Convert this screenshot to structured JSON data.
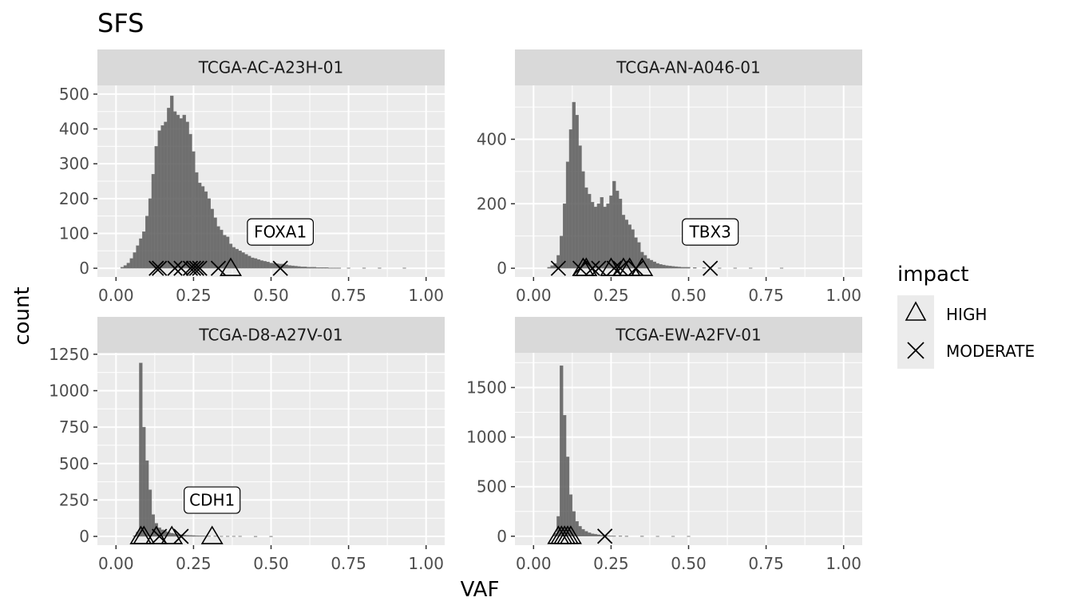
{
  "chart_data": {
    "type": "bar",
    "title": "SFS",
    "xlabel": "VAF",
    "ylabel": "count",
    "xlim": [
      0,
      1
    ],
    "x_ticks": [
      0,
      0.25,
      0.5,
      0.75,
      1
    ],
    "x_tick_labels": [
      "0.00",
      "0.25",
      "0.50",
      "0.75",
      "1.00"
    ],
    "grid": true,
    "legend": {
      "title": "impact",
      "position": "right",
      "entries": [
        {
          "label": "HIGH",
          "shape": "triangle"
        },
        {
          "label": "MODERATE",
          "shape": "cross"
        }
      ]
    },
    "panels": [
      {
        "sample": "TCGA-AC-A23H-01",
        "ylim": [
          -25,
          525
        ],
        "y_ticks": [
          0,
          100,
          200,
          300,
          400,
          500
        ],
        "bins": [
          [
            0.02,
            3
          ],
          [
            0.03,
            8
          ],
          [
            0.04,
            15
          ],
          [
            0.05,
            28
          ],
          [
            0.06,
            45
          ],
          [
            0.07,
            65
          ],
          [
            0.08,
            85
          ],
          [
            0.09,
            105
          ],
          [
            0.1,
            150
          ],
          [
            0.11,
            200
          ],
          [
            0.12,
            270
          ],
          [
            0.13,
            350
          ],
          [
            0.14,
            395
          ],
          [
            0.15,
            410
          ],
          [
            0.16,
            420
          ],
          [
            0.17,
            460
          ],
          [
            0.18,
            495
          ],
          [
            0.19,
            450
          ],
          [
            0.2,
            440
          ],
          [
            0.21,
            430
          ],
          [
            0.22,
            440
          ],
          [
            0.23,
            420
          ],
          [
            0.24,
            385
          ],
          [
            0.25,
            335
          ],
          [
            0.26,
            275
          ],
          [
            0.27,
            245
          ],
          [
            0.28,
            235
          ],
          [
            0.29,
            220
          ],
          [
            0.3,
            200
          ],
          [
            0.31,
            170
          ],
          [
            0.32,
            145
          ],
          [
            0.33,
            120
          ],
          [
            0.34,
            110
          ],
          [
            0.35,
            95
          ],
          [
            0.36,
            90
          ],
          [
            0.37,
            70
          ],
          [
            0.38,
            60
          ],
          [
            0.39,
            55
          ],
          [
            0.4,
            50
          ],
          [
            0.41,
            45
          ],
          [
            0.42,
            40
          ],
          [
            0.43,
            35
          ],
          [
            0.44,
            30
          ],
          [
            0.45,
            28
          ],
          [
            0.46,
            25
          ],
          [
            0.47,
            22
          ],
          [
            0.48,
            20
          ],
          [
            0.49,
            18
          ],
          [
            0.5,
            15
          ],
          [
            0.51,
            14
          ],
          [
            0.52,
            13
          ],
          [
            0.53,
            12
          ],
          [
            0.54,
            12
          ],
          [
            0.55,
            10
          ],
          [
            0.56,
            8
          ],
          [
            0.57,
            7
          ],
          [
            0.58,
            6
          ],
          [
            0.59,
            5
          ],
          [
            0.6,
            4
          ],
          [
            0.61,
            4
          ],
          [
            0.62,
            3
          ],
          [
            0.63,
            3
          ],
          [
            0.64,
            3
          ],
          [
            0.65,
            2
          ],
          [
            0.66,
            2
          ],
          [
            0.67,
            2
          ],
          [
            0.68,
            2
          ],
          [
            0.69,
            1
          ],
          [
            0.7,
            1
          ],
          [
            0.71,
            1
          ],
          [
            0.72,
            1
          ],
          [
            0.75,
            1
          ],
          [
            0.8,
            1
          ],
          [
            0.85,
            1
          ],
          [
            0.93,
            1
          ]
        ],
        "mutations": [
          {
            "vaf": 0.13,
            "impact": "MODERATE"
          },
          {
            "vaf": 0.14,
            "impact": "MODERATE"
          },
          {
            "vaf": 0.19,
            "impact": "MODERATE"
          },
          {
            "vaf": 0.21,
            "impact": "MODERATE"
          },
          {
            "vaf": 0.24,
            "impact": "MODERATE"
          },
          {
            "vaf": 0.25,
            "impact": "MODERATE"
          },
          {
            "vaf": 0.26,
            "impact": "MODERATE"
          },
          {
            "vaf": 0.27,
            "impact": "MODERATE"
          },
          {
            "vaf": 0.33,
            "impact": "MODERATE"
          },
          {
            "vaf": 0.37,
            "impact": "HIGH"
          },
          {
            "vaf": 0.53,
            "impact": "MODERATE",
            "label": "FOXA1"
          }
        ]
      },
      {
        "sample": "TCGA-AN-A046-01",
        "ylim": [
          -27,
          567
        ],
        "y_ticks": [
          0,
          200,
          400
        ],
        "bins": [
          [
            0.05,
            3
          ],
          [
            0.06,
            8
          ],
          [
            0.07,
            15
          ],
          [
            0.08,
            40
          ],
          [
            0.09,
            100
          ],
          [
            0.1,
            200
          ],
          [
            0.11,
            330
          ],
          [
            0.12,
            430
          ],
          [
            0.13,
            515
          ],
          [
            0.14,
            475
          ],
          [
            0.15,
            380
          ],
          [
            0.16,
            300
          ],
          [
            0.17,
            250
          ],
          [
            0.18,
            230
          ],
          [
            0.19,
            205
          ],
          [
            0.2,
            190
          ],
          [
            0.21,
            200
          ],
          [
            0.22,
            220
          ],
          [
            0.23,
            190
          ],
          [
            0.24,
            200
          ],
          [
            0.25,
            225
          ],
          [
            0.26,
            270
          ],
          [
            0.27,
            240
          ],
          [
            0.28,
            215
          ],
          [
            0.29,
            165
          ],
          [
            0.3,
            150
          ],
          [
            0.31,
            135
          ],
          [
            0.32,
            120
          ],
          [
            0.33,
            95
          ],
          [
            0.34,
            80
          ],
          [
            0.35,
            50
          ],
          [
            0.36,
            40
          ],
          [
            0.37,
            30
          ],
          [
            0.38,
            25
          ],
          [
            0.39,
            20
          ],
          [
            0.4,
            15
          ],
          [
            0.41,
            12
          ],
          [
            0.42,
            10
          ],
          [
            0.43,
            8
          ],
          [
            0.44,
            7
          ],
          [
            0.45,
            6
          ],
          [
            0.46,
            5
          ],
          [
            0.47,
            4
          ],
          [
            0.48,
            3
          ],
          [
            0.49,
            3
          ],
          [
            0.5,
            3
          ],
          [
            0.52,
            2
          ],
          [
            0.55,
            2
          ],
          [
            0.6,
            1
          ],
          [
            0.65,
            1
          ],
          [
            0.7,
            1
          ],
          [
            0.8,
            1
          ]
        ],
        "mutations": [
          {
            "vaf": 0.08,
            "impact": "MODERATE"
          },
          {
            "vaf": 0.15,
            "impact": "MODERATE"
          },
          {
            "vaf": 0.16,
            "impact": "HIGH"
          },
          {
            "vaf": 0.17,
            "impact": "HIGH"
          },
          {
            "vaf": 0.19,
            "impact": "MODERATE"
          },
          {
            "vaf": 0.21,
            "impact": "MODERATE"
          },
          {
            "vaf": 0.25,
            "impact": "HIGH"
          },
          {
            "vaf": 0.26,
            "impact": "MODERATE"
          },
          {
            "vaf": 0.28,
            "impact": "MODERATE"
          },
          {
            "vaf": 0.29,
            "impact": "HIGH"
          },
          {
            "vaf": 0.31,
            "impact": "HIGH"
          },
          {
            "vaf": 0.33,
            "impact": "MODERATE"
          },
          {
            "vaf": 0.35,
            "impact": "HIGH"
          },
          {
            "vaf": 0.57,
            "impact": "MODERATE",
            "label": "TBX3"
          }
        ]
      },
      {
        "sample": "TCGA-D8-A27V-01",
        "ylim": [
          -60,
          1260
        ],
        "y_ticks": [
          0,
          250,
          500,
          750,
          1000,
          1250
        ],
        "bins": [
          [
            0.06,
            5
          ],
          [
            0.07,
            30
          ],
          [
            0.08,
            1190
          ],
          [
            0.09,
            750
          ],
          [
            0.1,
            520
          ],
          [
            0.11,
            320
          ],
          [
            0.12,
            150
          ],
          [
            0.13,
            90
          ],
          [
            0.14,
            60
          ],
          [
            0.15,
            45
          ],
          [
            0.16,
            35
          ],
          [
            0.17,
            28
          ],
          [
            0.18,
            22
          ],
          [
            0.19,
            18
          ],
          [
            0.2,
            15
          ],
          [
            0.21,
            12
          ],
          [
            0.22,
            10
          ],
          [
            0.23,
            8
          ],
          [
            0.24,
            7
          ],
          [
            0.25,
            6
          ],
          [
            0.26,
            5
          ],
          [
            0.27,
            4
          ],
          [
            0.28,
            4
          ],
          [
            0.29,
            3
          ],
          [
            0.3,
            3
          ],
          [
            0.32,
            3
          ],
          [
            0.34,
            2
          ],
          [
            0.36,
            2
          ],
          [
            0.38,
            2
          ],
          [
            0.4,
            2
          ],
          [
            0.45,
            1
          ],
          [
            0.5,
            1
          ]
        ],
        "mutations": [
          {
            "vaf": 0.08,
            "impact": "HIGH"
          },
          {
            "vaf": 0.09,
            "impact": "HIGH"
          },
          {
            "vaf": 0.13,
            "impact": "HIGH"
          },
          {
            "vaf": 0.14,
            "impact": "MODERATE"
          },
          {
            "vaf": 0.18,
            "impact": "HIGH"
          },
          {
            "vaf": 0.21,
            "impact": "MODERATE"
          },
          {
            "vaf": 0.31,
            "impact": "HIGH",
            "label": "CDH1"
          }
        ]
      },
      {
        "sample": "TCGA-EW-A2FV-01",
        "ylim": [
          -90,
          1850
        ],
        "y_ticks": [
          0,
          500,
          1000,
          1500
        ],
        "bins": [
          [
            0.07,
            30
          ],
          [
            0.08,
            200
          ],
          [
            0.09,
            1720
          ],
          [
            0.1,
            1220
          ],
          [
            0.11,
            800
          ],
          [
            0.12,
            420
          ],
          [
            0.13,
            250
          ],
          [
            0.14,
            150
          ],
          [
            0.15,
            100
          ],
          [
            0.16,
            70
          ],
          [
            0.17,
            50
          ],
          [
            0.18,
            35
          ],
          [
            0.19,
            25
          ],
          [
            0.2,
            20
          ],
          [
            0.21,
            15
          ],
          [
            0.22,
            10
          ],
          [
            0.23,
            8
          ],
          [
            0.24,
            5
          ],
          [
            0.25,
            4
          ],
          [
            0.26,
            3
          ],
          [
            0.28,
            3
          ],
          [
            0.3,
            2
          ],
          [
            0.35,
            2
          ],
          [
            0.4,
            1
          ],
          [
            0.45,
            1
          ],
          [
            0.5,
            1
          ]
        ],
        "mutations": [
          {
            "vaf": 0.08,
            "impact": "HIGH"
          },
          {
            "vaf": 0.09,
            "impact": "HIGH"
          },
          {
            "vaf": 0.1,
            "impact": "HIGH"
          },
          {
            "vaf": 0.11,
            "impact": "HIGH"
          },
          {
            "vaf": 0.12,
            "impact": "HIGH"
          },
          {
            "vaf": 0.23,
            "impact": "MODERATE"
          }
        ]
      }
    ]
  }
}
